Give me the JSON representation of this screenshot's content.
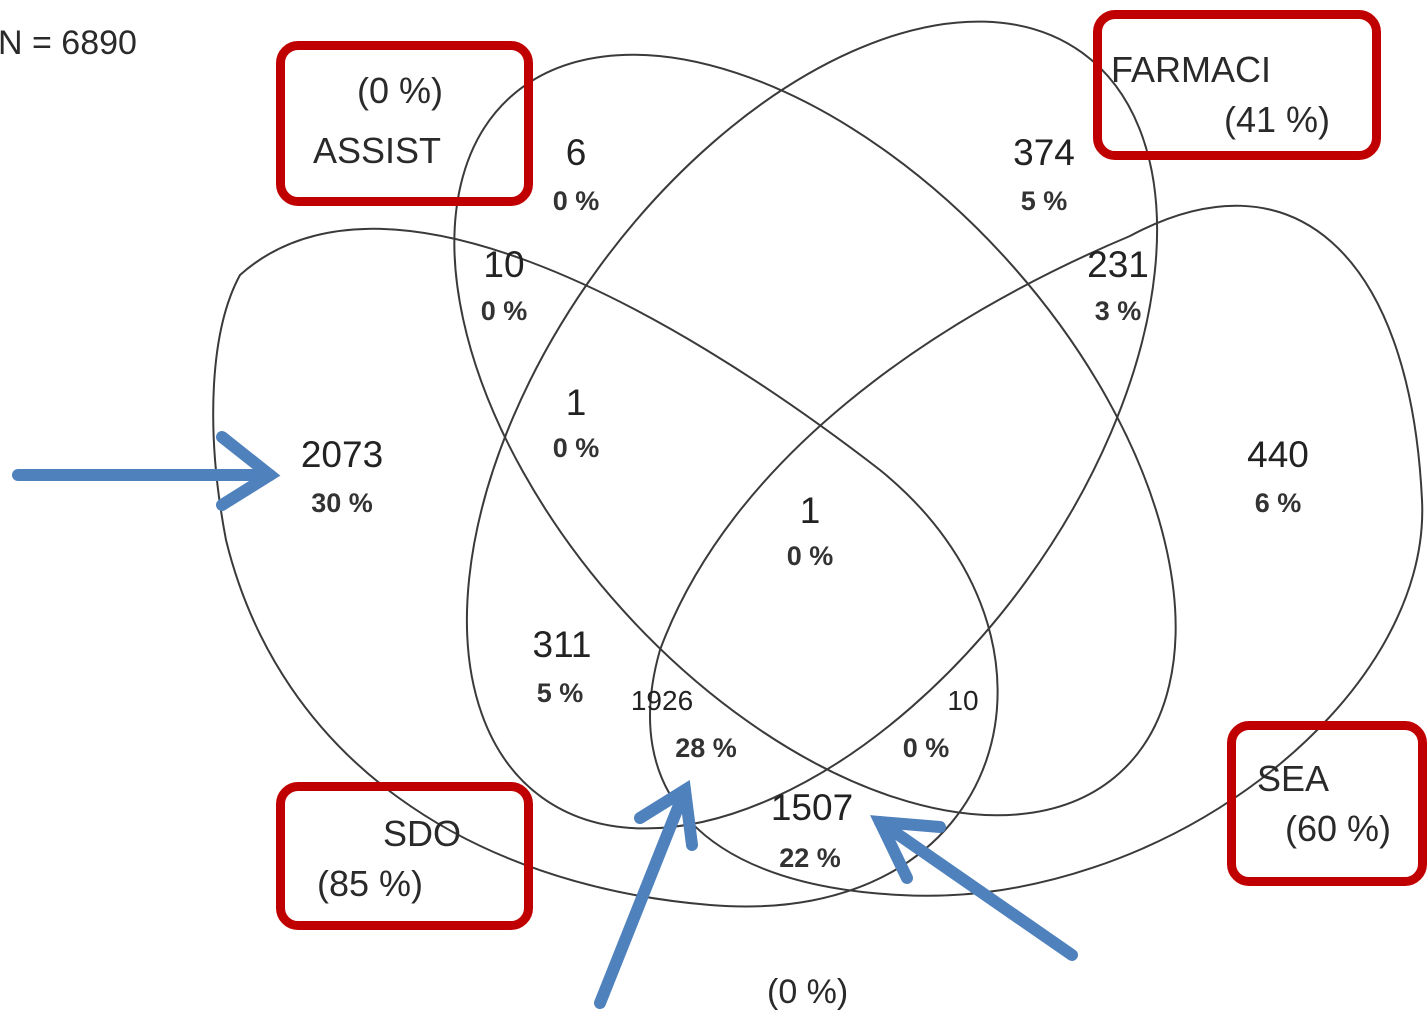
{
  "total_label": "N = 6890",
  "sets": {
    "assist": {
      "name": "ASSIST",
      "pct": "(0 %)"
    },
    "farmaci": {
      "name": "FARMACI",
      "pct": "(41 %)"
    },
    "sdo": {
      "name": "SDO",
      "pct": "(85 %)"
    },
    "sea": {
      "name": "SEA",
      "pct": "(60 %)"
    }
  },
  "outside_pct": "(0 %)",
  "regions": {
    "assist_only": {
      "count": "6",
      "pct": "0 %"
    },
    "farmaci_only": {
      "count": "374",
      "pct": "5 %"
    },
    "sdo_assist": {
      "count": "10",
      "pct": "0 %"
    },
    "farmaci_sea": {
      "count": "231",
      "pct": "3 %"
    },
    "assist_farmaci": {
      "count": "1",
      "pct": "0 %"
    },
    "sdo_only": {
      "count": "2073",
      "pct": "30 %"
    },
    "sea_only": {
      "count": "440",
      "pct": "6 %"
    },
    "center": {
      "count": "1",
      "pct": "0 %"
    },
    "sdo_farmaci": {
      "count": "311",
      "pct": "5 %"
    },
    "sdo_farmaci_sea": {
      "count": "1926",
      "pct": "28 %"
    },
    "assist_sea": {
      "count": "10",
      "pct": "0 %"
    },
    "sdo_sea": {
      "count": "1507",
      "pct": "22 %"
    }
  },
  "colors": {
    "highlight_box": "#C00000",
    "arrow": "#4F81BD",
    "ellipse_stroke": "#3a3a3a"
  }
}
